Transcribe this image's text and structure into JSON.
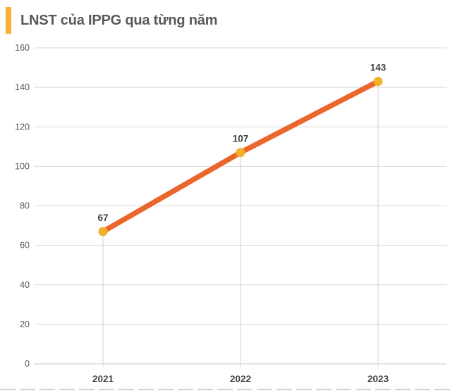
{
  "header": {
    "title": "LNST của IPPG qua từng năm"
  },
  "colors": {
    "accent_bar": "#F8B133",
    "line": "#EB662D",
    "marker": "#F1B02A",
    "gridline": "#D9D9D9",
    "axis_line": "#C9C9C9",
    "drop_line": "#D4D4D4",
    "title_text": "#595959",
    "ytick_text": "#595959",
    "xtick_text": "#404040",
    "data_label_text": "#404040",
    "bottom_dashes": "#CBD0D8"
  },
  "chart_data": {
    "type": "line",
    "title": "LNST của IPPG qua từng năm",
    "categories": [
      "2021",
      "2022",
      "2023"
    ],
    "values": [
      67,
      107,
      143
    ],
    "data_labels": [
      "67",
      "107",
      "143"
    ],
    "xlabel": "",
    "ylabel": "",
    "ylim": [
      0,
      160
    ],
    "yticks": [
      0,
      20,
      40,
      60,
      80,
      100,
      120,
      140,
      160
    ],
    "grid": "horizontal gridlines + vertical drop lines from points to axis",
    "legend": "none"
  }
}
